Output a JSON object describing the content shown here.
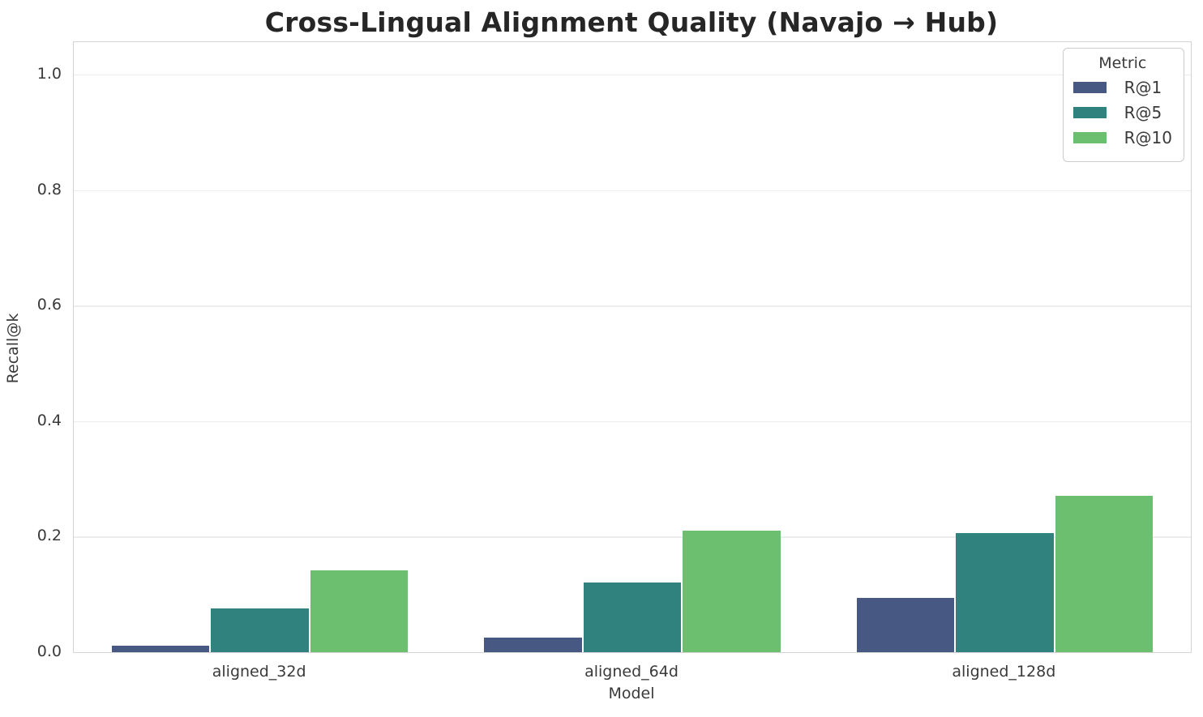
{
  "title": "Cross-Lingual Alignment Quality (Navajo → Hub)",
  "legend": {
    "title": "Metric",
    "entries": [
      "R@1",
      "R@5",
      "R@10"
    ]
  },
  "colors": {
    "r_at_1": "#475882",
    "r_at_5": "#2f827e",
    "r_at_10": "#6cbf6e",
    "grid": "#ececec",
    "spine": "#d4d4d4",
    "text": "#3a3a3a",
    "title_text": "#262626"
  },
  "chart_data": {
    "type": "bar",
    "title": "Cross-Lingual Alignment Quality (Navajo → Hub)",
    "xlabel": "Model",
    "ylabel": "Recall@k",
    "categories": [
      "aligned_32d",
      "aligned_64d",
      "aligned_128d"
    ],
    "series": [
      {
        "name": "R@1",
        "color": "#475882",
        "values": [
          0.011,
          0.025,
          0.094
        ]
      },
      {
        "name": "R@5",
        "color": "#2f827e",
        "values": [
          0.076,
          0.12,
          0.206
        ]
      },
      {
        "name": "R@10",
        "color": "#6cbf6e",
        "values": [
          0.142,
          0.21,
          0.27
        ]
      }
    ],
    "ylim": [
      0,
      1.056
    ],
    "yticks": [
      0.0,
      0.2,
      0.4,
      0.6,
      0.8,
      1.0
    ],
    "ytick_labels": [
      "0.0",
      "0.2",
      "0.4",
      "0.6",
      "0.8",
      "1.0"
    ],
    "grid": true,
    "legend_title": "Metric",
    "legend_position": "upper right",
    "bar_group_fraction": 0.8
  }
}
